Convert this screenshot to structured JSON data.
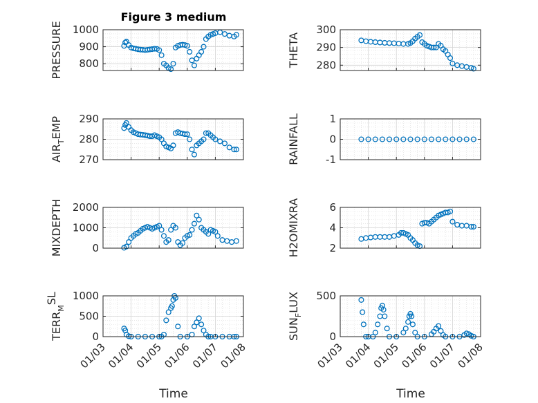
{
  "chart_data": [
    {
      "type": "scatter",
      "title": "Figure 3 medium",
      "ylabel": {
        "main": "PRESSURE"
      },
      "xlim": [
        "01/03",
        "01/08"
      ],
      "ylim": [
        760,
        1000
      ],
      "yticks": [
        "1000",
        "900",
        "800"
      ],
      "grid": "on",
      "x": [
        "01/03 18:00",
        "01/03 19:00",
        "01/03 20:00",
        "01/03 22:00",
        "01/04 00:00",
        "01/04 02:00",
        "01/04 04:00",
        "01/04 06:00",
        "01/04 08:00",
        "01/04 10:00",
        "01/04 12:00",
        "01/04 14:00",
        "01/04 16:00",
        "01/04 18:00",
        "01/04 20:00",
        "01/04 22:00",
        "01/05 00:00",
        "01/05 02:00",
        "01/05 04:00",
        "01/05 06:00",
        "01/05 08:00",
        "01/05 10:00",
        "01/05 12:00",
        "01/05 14:00",
        "01/05 16:00",
        "01/05 18:00",
        "01/05 20:00",
        "01/05 22:00",
        "01/06 00:00",
        "01/06 02:00",
        "01/06 04:00",
        "01/06 06:00",
        "01/06 08:00",
        "01/06 10:00",
        "01/06 12:00",
        "01/06 14:00",
        "01/06 16:00",
        "01/06 18:00",
        "01/06 20:00",
        "01/06 22:00",
        "01/07 00:00",
        "01/07 04:00",
        "01/07 08:00",
        "01/07 12:00",
        "01/07 16:00",
        "01/07 18:00"
      ],
      "y": [
        905,
        925,
        930,
        910,
        895,
        890,
        888,
        885,
        883,
        882,
        880,
        882,
        884,
        886,
        888,
        887,
        880,
        850,
        800,
        790,
        775,
        768,
        800,
        895,
        905,
        910,
        912,
        910,
        905,
        870,
        820,
        790,
        830,
        850,
        870,
        900,
        945,
        960,
        970,
        975,
        980,
        985,
        975,
        965,
        960,
        970
      ]
    },
    {
      "type": "scatter",
      "ylabel": {
        "main": "THETA"
      },
      "ylim": [
        277,
        300
      ],
      "yticks": [
        "300",
        "290",
        "280"
      ],
      "grid": "on",
      "x": [
        "01/03 18:00",
        "01/03 22:00",
        "01/04 02:00",
        "01/04 06:00",
        "01/04 10:00",
        "01/04 14:00",
        "01/04 18:00",
        "01/04 22:00",
        "01/05 02:00",
        "01/05 06:00",
        "01/05 10:00",
        "01/05 12:00",
        "01/05 14:00",
        "01/05 16:00",
        "01/05 18:00",
        "01/05 20:00",
        "01/05 22:00",
        "01/06 00:00",
        "01/06 02:00",
        "01/06 04:00",
        "01/06 06:00",
        "01/06 08:00",
        "01/06 10:00",
        "01/06 12:00",
        "01/06 14:00",
        "01/06 16:00",
        "01/06 18:00",
        "01/06 20:00",
        "01/06 22:00",
        "01/07 00:00",
        "01/07 04:00",
        "01/07 08:00",
        "01/07 12:00",
        "01/07 16:00",
        "01/07 18:00"
      ],
      "y": [
        294,
        293.5,
        293.2,
        293,
        292.8,
        292.6,
        292.5,
        292.4,
        292.2,
        292,
        292,
        292.5,
        293.5,
        295,
        296,
        297,
        293,
        292,
        291,
        290.5,
        290,
        290,
        290,
        292,
        291,
        289,
        288,
        286,
        284,
        281,
        280,
        279.5,
        279,
        278.5,
        278
      ]
    },
    {
      "type": "scatter",
      "ylabel": {
        "main": "AIR",
        "sub": "T",
        "rest": "EMP"
      },
      "ylim": [
        270,
        290
      ],
      "yticks": [
        "290",
        "280",
        "270"
      ],
      "grid": "on",
      "x": [
        "01/03 18:00",
        "01/03 19:00",
        "01/03 20:00",
        "01/03 22:00",
        "01/04 00:00",
        "01/04 02:00",
        "01/04 04:00",
        "01/04 06:00",
        "01/04 08:00",
        "01/04 10:00",
        "01/04 12:00",
        "01/04 14:00",
        "01/04 16:00",
        "01/04 18:00",
        "01/04 20:00",
        "01/04 22:00",
        "01/05 00:00",
        "01/05 02:00",
        "01/05 04:00",
        "01/05 06:00",
        "01/05 08:00",
        "01/05 10:00",
        "01/05 12:00",
        "01/05 14:00",
        "01/05 16:00",
        "01/05 18:00",
        "01/05 20:00",
        "01/05 22:00",
        "01/06 00:00",
        "01/06 02:00",
        "01/06 04:00",
        "01/06 06:00",
        "01/06 08:00",
        "01/06 10:00",
        "01/06 12:00",
        "01/06 14:00",
        "01/06 16:00",
        "01/06 18:00",
        "01/06 20:00",
        "01/06 22:00",
        "01/07 00:00",
        "01/07 04:00",
        "01/07 08:00",
        "01/07 12:00",
        "01/07 16:00",
        "01/07 18:00"
      ],
      "y": [
        285.5,
        287,
        288,
        286,
        284.5,
        283.5,
        283,
        282.5,
        282.3,
        282.2,
        282,
        281.8,
        281.5,
        281.5,
        282,
        281.5,
        281,
        280,
        278,
        276.5,
        276,
        275.5,
        277,
        283,
        283.5,
        283,
        282.8,
        282.5,
        282.5,
        280,
        275,
        272.5,
        277,
        278,
        279,
        280,
        283,
        283,
        282,
        281,
        280,
        279,
        278,
        276,
        275,
        275
      ]
    },
    {
      "type": "scatter",
      "ylabel": {
        "main": "RAINFALL"
      },
      "ylim": [
        -1,
        1
      ],
      "yticks": [
        "1",
        "0",
        "-1"
      ],
      "grid": "on",
      "x": [
        "01/03 18:00",
        "01/04 00:00",
        "01/04 06:00",
        "01/04 12:00",
        "01/04 18:00",
        "01/05 00:00",
        "01/05 06:00",
        "01/05 12:00",
        "01/05 18:00",
        "01/06 00:00",
        "01/06 06:00",
        "01/06 12:00",
        "01/06 18:00",
        "01/07 00:00",
        "01/07 06:00",
        "01/07 12:00",
        "01/07 18:00"
      ],
      "y": [
        0,
        0,
        0,
        0,
        0,
        0,
        0,
        0,
        0,
        0,
        0,
        0,
        0,
        0,
        0,
        0,
        0
      ]
    },
    {
      "type": "scatter",
      "ylabel": {
        "main": "MIXDEPTH"
      },
      "ylim": [
        0,
        2000
      ],
      "yticks": [
        "2000",
        "1000",
        "0"
      ],
      "grid": "on",
      "x": [
        "01/03 18:00",
        "01/03 20:00",
        "01/03 22:00",
        "01/04 00:00",
        "01/04 02:00",
        "01/04 04:00",
        "01/04 06:00",
        "01/04 08:00",
        "01/04 10:00",
        "01/04 12:00",
        "01/04 14:00",
        "01/04 16:00",
        "01/04 18:00",
        "01/04 20:00",
        "01/04 22:00",
        "01/05 00:00",
        "01/05 02:00",
        "01/05 04:00",
        "01/05 06:00",
        "01/05 08:00",
        "01/05 10:00",
        "01/05 12:00",
        "01/05 14:00",
        "01/05 16:00",
        "01/05 18:00",
        "01/05 20:00",
        "01/05 22:00",
        "01/06 00:00",
        "01/06 02:00",
        "01/06 04:00",
        "01/06 06:00",
        "01/06 08:00",
        "01/06 10:00",
        "01/06 12:00",
        "01/06 14:00",
        "01/06 16:00",
        "01/06 18:00",
        "01/06 20:00",
        "01/06 22:00",
        "01/07 00:00",
        "01/07 02:00",
        "01/07 06:00",
        "01/07 10:00",
        "01/07 14:00",
        "01/07 18:00"
      ],
      "y": [
        20,
        80,
        300,
        500,
        600,
        700,
        750,
        850,
        950,
        1000,
        1050,
        1000,
        950,
        1000,
        1050,
        1100,
        900,
        600,
        300,
        400,
        900,
        1100,
        1000,
        300,
        150,
        250,
        500,
        600,
        650,
        900,
        1200,
        1600,
        1400,
        1000,
        900,
        800,
        700,
        900,
        850,
        800,
        600,
        400,
        350,
        300,
        350
      ]
    },
    {
      "type": "scatter",
      "ylabel": {
        "main": "H2OMIXRA"
      },
      "ylim": [
        2,
        6
      ],
      "yticks": [
        "6",
        "4",
        "2"
      ],
      "grid": "on",
      "x": [
        "01/03 18:00",
        "01/03 22:00",
        "01/04 02:00",
        "01/04 06:00",
        "01/04 10:00",
        "01/04 14:00",
        "01/04 18:00",
        "01/04 22:00",
        "01/05 02:00",
        "01/05 04:00",
        "01/05 06:00",
        "01/05 08:00",
        "01/05 10:00",
        "01/05 12:00",
        "01/05 14:00",
        "01/05 16:00",
        "01/05 18:00",
        "01/05 20:00",
        "01/05 22:00",
        "01/06 00:00",
        "01/06 02:00",
        "01/06 04:00",
        "01/06 06:00",
        "01/06 08:00",
        "01/06 10:00",
        "01/06 12:00",
        "01/06 14:00",
        "01/06 16:00",
        "01/06 18:00",
        "01/06 20:00",
        "01/06 22:00",
        "01/07 00:00",
        "01/07 04:00",
        "01/07 08:00",
        "01/07 12:00",
        "01/07 16:00",
        "01/07 18:00"
      ],
      "y": [
        2.9,
        3,
        3.05,
        3.1,
        3.1,
        3.1,
        3.1,
        3.2,
        3.3,
        3.5,
        3.5,
        3.4,
        3.3,
        3,
        2.8,
        2.5,
        2.3,
        2.2,
        4.4,
        4.5,
        4.5,
        4.4,
        4.6,
        4.8,
        5,
        5.2,
        5.3,
        5.4,
        5.5,
        5.5,
        5.6,
        4.6,
        4.3,
        4.2,
        4.2,
        4.1,
        4.1
      ]
    },
    {
      "type": "scatter",
      "ylabel": {
        "main": "TERR",
        "sub": "M",
        "sup": "SL"
      },
      "ylim": [
        0,
        1000
      ],
      "yticks": [
        "1000",
        "500",
        "0"
      ],
      "grid": "on",
      "x": [
        "01/03 18:00",
        "01/03 19:00",
        "01/03 20:00",
        "01/03 22:00",
        "01/04 00:00",
        "01/04 06:00",
        "01/04 12:00",
        "01/04 18:00",
        "01/05 00:00",
        "01/05 02:00",
        "01/05 04:00",
        "01/05 06:00",
        "01/05 08:00",
        "01/05 10:00",
        "01/05 11:00",
        "01/05 12:00",
        "01/05 13:00",
        "01/05 14:00",
        "01/05 16:00",
        "01/05 18:00",
        "01/06 00:00",
        "01/06 04:00",
        "01/06 06:00",
        "01/06 08:00",
        "01/06 10:00",
        "01/06 12:00",
        "01/06 14:00",
        "01/06 16:00",
        "01/06 18:00",
        "01/06 20:00",
        "01/07 00:00",
        "01/07 06:00",
        "01/07 12:00",
        "01/07 16:00",
        "01/07 18:00"
      ],
      "y": [
        200,
        150,
        50,
        10,
        0,
        0,
        0,
        0,
        0,
        0,
        50,
        400,
        600,
        700,
        750,
        900,
        1000,
        950,
        250,
        0,
        0,
        50,
        250,
        350,
        450,
        300,
        150,
        50,
        0,
        0,
        0,
        0,
        0,
        0,
        0
      ]
    },
    {
      "type": "scatter",
      "ylabel": {
        "main": "SUN",
        "sub": "F",
        "rest": "LUX"
      },
      "ylim": [
        0,
        500
      ],
      "yticks": [
        "500",
        "0"
      ],
      "grid": "on",
      "x": [
        "01/03 18:00",
        "01/03 19:00",
        "01/03 20:00",
        "01/03 22:00",
        "01/04 00:00",
        "01/04 04:00",
        "01/04 06:00",
        "01/04 08:00",
        "01/04 10:00",
        "01/04 11:00",
        "01/04 12:00",
        "01/04 13:00",
        "01/04 14:00",
        "01/04 16:00",
        "01/04 18:00",
        "01/05 00:00",
        "01/05 06:00",
        "01/05 08:00",
        "01/05 10:00",
        "01/05 11:00",
        "01/05 12:00",
        "01/05 13:00",
        "01/05 14:00",
        "01/05 16:00",
        "01/05 18:00",
        "01/06 00:00",
        "01/06 06:00",
        "01/06 08:00",
        "01/06 10:00",
        "01/06 12:00",
        "01/06 14:00",
        "01/06 16:00",
        "01/06 18:00",
        "01/07 00:00",
        "01/07 06:00",
        "01/07 10:00",
        "01/07 12:00",
        "01/07 14:00",
        "01/07 16:00",
        "01/07 18:00"
      ],
      "y": [
        450,
        300,
        150,
        0,
        0,
        0,
        50,
        150,
        250,
        350,
        380,
        330,
        250,
        100,
        0,
        0,
        50,
        100,
        180,
        250,
        280,
        250,
        150,
        50,
        0,
        0,
        30,
        60,
        100,
        130,
        70,
        20,
        0,
        0,
        0,
        20,
        40,
        30,
        10,
        0
      ]
    }
  ],
  "xaxis": {
    "ticks": [
      "01/03",
      "01/04",
      "01/05",
      "01/06",
      "01/07",
      "01/08"
    ],
    "label": "Time"
  },
  "colors": {
    "marker": "#0072BD",
    "axes": "#262626",
    "grid": "#dfdfdf"
  }
}
